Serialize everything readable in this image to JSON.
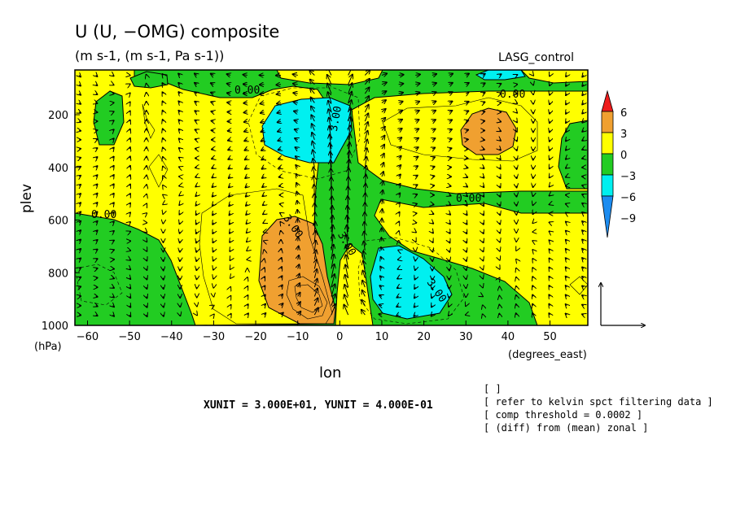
{
  "title": "U (U, −OMG) composite",
  "units": "(m s-1, (m s-1, Pa s-1))",
  "experiment": "LASG_control",
  "x_axis": {
    "label": "lon",
    "unit_label": "(degrees_east)",
    "ticks": [
      "−60",
      "−50",
      "−40",
      "−30",
      "−20",
      "−10",
      "0",
      "10",
      "20",
      "30",
      "40",
      "50"
    ]
  },
  "y_axis": {
    "label": "plev",
    "unit_label": "(hPa)",
    "ticks": [
      "200",
      "400",
      "600",
      "800",
      "1000"
    ]
  },
  "colorbar": {
    "labels": [
      "6",
      "3",
      "0",
      "−3",
      "−6",
      "−9"
    ],
    "colors": {
      "red": "#ee1c1c",
      "orange": "#f0a030",
      "yellow": "#ffff00",
      "green": "#22cc22",
      "cyan": "#00f0f0",
      "blue": "#1c8cf0"
    }
  },
  "contour_labels": [
    "0.00",
    "0.00",
    "0.00",
    "0.00",
    "3.00",
    "3.00",
    "3.00",
    "3.00"
  ],
  "vector_units": "XUNIT = 3.000E+01, YUNIT = 4.000E-01",
  "notes": [
    "[  ]",
    "[ refer to kelvin spct filtering data ]",
    "[ comp threshold = 0.0002 ]",
    "[ (diff) from (mean) zonal ]"
  ],
  "chart_data": {
    "type": "heatmap",
    "title": "U (U, −OMG) composite",
    "xlabel": "lon",
    "ylabel": "plev",
    "xlim": [
      -63,
      59
    ],
    "ylim": [
      1000,
      30
    ],
    "contour_interval": 3,
    "levels": [
      -9,
      -6,
      -3,
      0,
      3,
      6
    ],
    "features": [
      {
        "sign": "positive",
        "lon": -8,
        "plev": 780,
        "max": 3
      },
      {
        "sign": "positive",
        "lon": 35,
        "plev": 240,
        "max": 3
      },
      {
        "sign": "negative",
        "lon": 0,
        "plev": 220,
        "min": -6
      },
      {
        "sign": "negative",
        "lon": 15,
        "plev": 820,
        "min": -6
      },
      {
        "sign": "negative",
        "lon": 42,
        "plev": 40,
        "min": -6
      }
    ],
    "vector_field": {
      "components": [
        "U",
        "−OMG"
      ],
      "max_updraft_lon": 0
    }
  }
}
